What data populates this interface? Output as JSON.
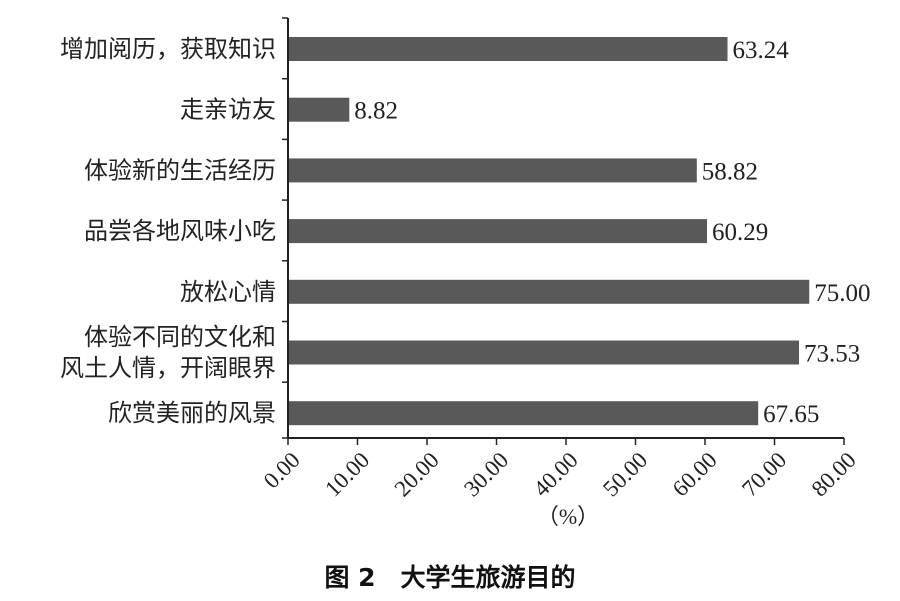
{
  "chart_data": {
    "type": "bar",
    "orientation": "horizontal",
    "categories": [
      [
        "增加阅历，获取知识"
      ],
      [
        "走亲访友"
      ],
      [
        "体验新的生活经历"
      ],
      [
        "品尝各地风味小吃"
      ],
      [
        "放松心情"
      ],
      [
        "体验不同的文化和",
        "风土人情，开阔眼界"
      ],
      [
        "欣赏美丽的风景"
      ]
    ],
    "values": [
      63.24,
      8.82,
      58.82,
      60.29,
      75.0,
      73.53,
      67.65
    ],
    "value_labels": [
      "63.24",
      "8.82",
      "58.82",
      "60.29",
      "75.00",
      "73.53",
      "67.65"
    ],
    "xticks": [
      "0.00",
      "10.00",
      "20.00",
      "30.00",
      "40.00",
      "50.00",
      "60.00",
      "70.00",
      "80.00"
    ],
    "xlim": [
      0,
      80
    ],
    "xlabel": "（%）",
    "title": "图 2　大学生旅游目的",
    "bar_color": "#595959",
    "grid": false
  }
}
